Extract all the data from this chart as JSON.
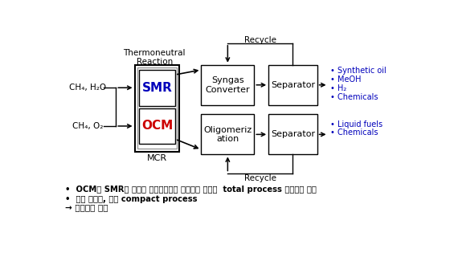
{
  "bg_color": "#ffffff",
  "smr_color": "#0000bb",
  "ocm_color": "#cc0000",
  "blue_text_color": "#0000bb",
  "mcr_label": "MCR",
  "thermoneutral_label": "Thermoneutral\nReaction",
  "smr_label": "SMR",
  "ocm_label": "OCM",
  "syngas_label": "Syngas\nConverter",
  "oligomer_label": "Oligomeriz\nation",
  "separator1_label": "Separator",
  "separator2_label": "Separator",
  "recycle_top": "Recycle",
  "recycle_bottom": "Recycle",
  "input1_label": "CH₄, H₂O",
  "input2_label": "CH₄, O₂",
  "output1_items": [
    "• Synthetic oil",
    "• MeOH",
    "• H₂",
    "• Chemicals"
  ],
  "output2_items": [
    "• Liquid fuels",
    "• Chemicals"
  ],
  "bullet1": "•  OCM과 SMR이 결합된 마이크로쉡너 반응기를 사용한  total process 개념기술 개발",
  "bullet2": "•  높은 열효율, 소형 compact process",
  "bullet3": "→ 개념특허 출원"
}
